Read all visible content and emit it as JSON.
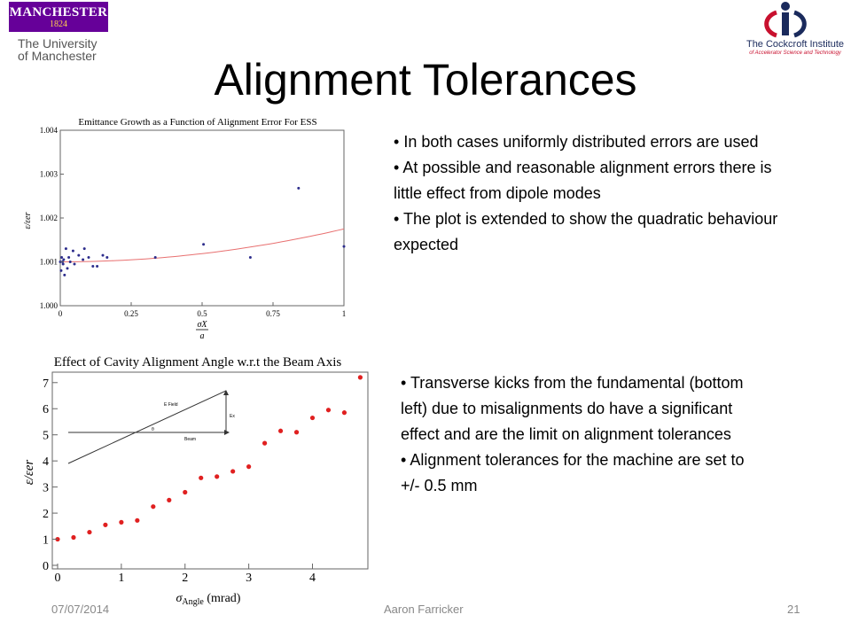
{
  "slide": {
    "title": "Alignment Tolerances",
    "page_number": "21"
  },
  "logos": {
    "left": {
      "name": "MANCHESTER",
      "year": "1824",
      "line1": "The University",
      "line2": "of Manchester"
    },
    "right": {
      "name": "The Cockcroft Institute",
      "tagline": "of Accelerator Science and Technology"
    }
  },
  "bullets_top": [
    "In both cases uniformly distributed errors are used",
    "At possible and reasonable alignment errors there is little effect from dipole modes",
    "The plot is extended to show the quadratic behaviour expected"
  ],
  "bullets_bottom": [
    "Transverse kicks from the fundamental (bottom left) due to misalignments do have a significant effect and are the limit on alignment tolerances",
    "Alignment tolerances for the machine are set to +/- 0.5 mm"
  ],
  "footer": {
    "date": "07/07/2014",
    "author": "Aaron Farricker"
  },
  "chart_data": [
    {
      "type": "scatter",
      "title": "Emittance Growth as a Function of Alignment Error For ESS",
      "xlabel_num": "σX",
      "xlabel_den": "a",
      "ylabel": "ε/εer",
      "xlim": [
        0,
        1
      ],
      "ylim": [
        1.0,
        1.004
      ],
      "xticks": [
        "0",
        "0.25",
        "0.5",
        "0.75",
        "1"
      ],
      "yticks": [
        "1.000",
        "1.001",
        "1.002",
        "1.003",
        "1.004"
      ],
      "fit_coeffs": [
        1.001,
        0.00075
      ],
      "marker_color": "#2d2d8c",
      "fit_color": "#e87070",
      "points": [
        [
          0.0,
          1.001
        ],
        [
          0.003,
          1.0008
        ],
        [
          0.005,
          1.0011
        ],
        [
          0.008,
          1.001
        ],
        [
          0.01,
          1.00095
        ],
        [
          0.012,
          1.00105
        ],
        [
          0.015,
          1.0007
        ],
        [
          0.02,
          1.0013
        ],
        [
          0.025,
          1.00085
        ],
        [
          0.03,
          1.0011
        ],
        [
          0.035,
          1.001
        ],
        [
          0.045,
          1.00125
        ],
        [
          0.05,
          1.00095
        ],
        [
          0.065,
          1.00115
        ],
        [
          0.08,
          1.00105
        ],
        [
          0.085,
          1.0013
        ],
        [
          0.1,
          1.0011
        ],
        [
          0.115,
          1.0009
        ],
        [
          0.13,
          1.0009
        ],
        [
          0.15,
          1.00115
        ],
        [
          0.165,
          1.0011
        ],
        [
          0.335,
          1.0011
        ],
        [
          0.505,
          1.0014
        ],
        [
          0.67,
          1.0011
        ],
        [
          0.84,
          1.00268
        ],
        [
          1.0,
          1.00135
        ]
      ]
    },
    {
      "type": "scatter",
      "title": "Effect of Cavity Alignment Angle w.r.t the Beam Axis",
      "xlabel_main": "σ",
      "xlabel_sub": "Angle",
      "xlabel_unit": " (mrad)",
      "ylabel": "ε/εer",
      "xlim": [
        0,
        4.8
      ],
      "ylim": [
        0,
        7.4
      ],
      "xticks": [
        0,
        1,
        2,
        3,
        4
      ],
      "yticks": [
        0,
        1,
        2,
        3,
        4,
        5,
        6,
        7
      ],
      "marker_color": "#e02020",
      "inset": {
        "field_label": "E Field",
        "beam_label": "Beam",
        "angle_label": "θ",
        "component_label": "Ex"
      },
      "points": [
        [
          0.0,
          1.0
        ],
        [
          0.25,
          1.07
        ],
        [
          0.5,
          1.27
        ],
        [
          0.75,
          1.55
        ],
        [
          1.0,
          1.65
        ],
        [
          1.25,
          1.72
        ],
        [
          1.5,
          2.25
        ],
        [
          1.75,
          2.5
        ],
        [
          2.0,
          2.8
        ],
        [
          2.25,
          3.35
        ],
        [
          2.5,
          3.4
        ],
        [
          2.75,
          3.6
        ],
        [
          3.0,
          3.78
        ],
        [
          3.25,
          4.68
        ],
        [
          3.5,
          5.15
        ],
        [
          3.75,
          5.1
        ],
        [
          4.0,
          5.65
        ],
        [
          4.25,
          5.95
        ],
        [
          4.5,
          5.85
        ],
        [
          4.75,
          7.2
        ]
      ]
    }
  ]
}
